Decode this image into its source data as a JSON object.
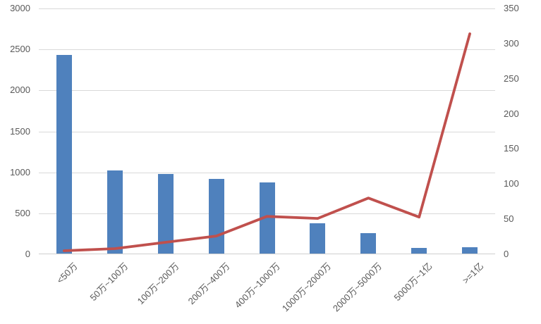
{
  "chart_data": {
    "type": "combo",
    "title": "",
    "legend": false,
    "grid": true,
    "categories": [
      "<50万",
      "50万~100万",
      "100万~200万",
      "200万~400万",
      "400万~1000万",
      "1000万~2000万",
      "2000万~5000万",
      "5000万~1亿",
      ">=1亿"
    ],
    "series": [
      {
        "id": "bar-series",
        "type": "bar",
        "axis": "left",
        "color": "#4F81BD",
        "values": [
          2430,
          1025,
          980,
          920,
          880,
          380,
          260,
          75,
          85
        ]
      },
      {
        "id": "line-series",
        "type": "line",
        "axis": "right",
        "color": "#C0504D",
        "values": [
          5,
          8,
          17,
          26,
          54,
          51,
          80,
          53,
          314
        ]
      }
    ],
    "left_axis": {
      "min": 0,
      "max": 3000,
      "step": 500,
      "tick_labels": [
        "0",
        "500",
        "1000",
        "1500",
        "2000",
        "2500",
        "3000"
      ]
    },
    "right_axis": {
      "min": 0,
      "max": 350,
      "step": 50,
      "tick_labels": [
        "0",
        "50",
        "100",
        "150",
        "200",
        "250",
        "300",
        "350"
      ]
    },
    "colors": {
      "background": "#FFFFFF",
      "gridline": "#D9D9D9",
      "axis_line": "#CFCFCF",
      "tick_label": "#595959"
    }
  }
}
